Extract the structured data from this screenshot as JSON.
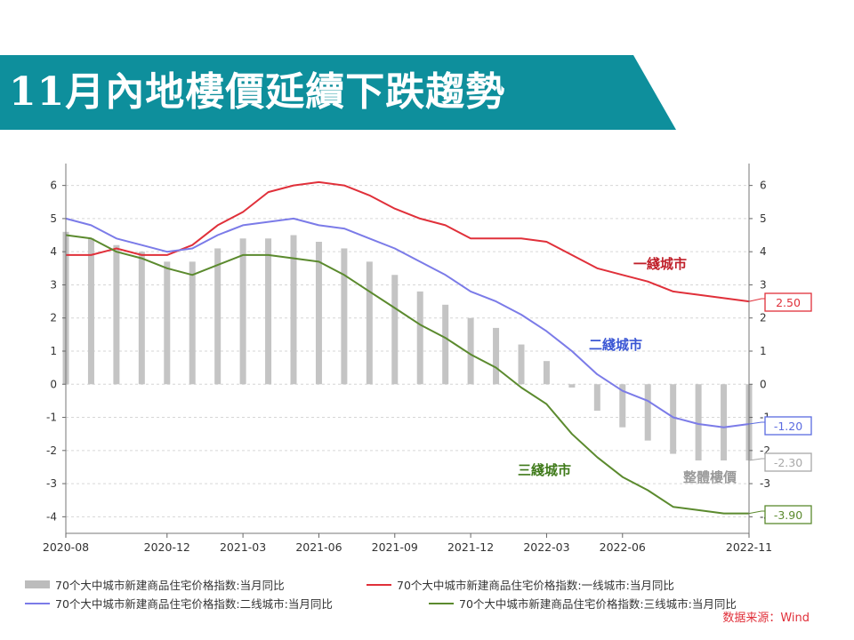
{
  "title": "11月內地樓價延續下跌趨勢",
  "chart_data": {
    "type": "bar+line",
    "x": [
      "2020-08",
      "2020-09",
      "2020-10",
      "2020-11",
      "2020-12",
      "2021-01",
      "2021-02",
      "2021-03",
      "2021-04",
      "2021-05",
      "2021-06",
      "2021-07",
      "2021-08",
      "2021-09",
      "2021-10",
      "2021-11",
      "2021-12",
      "2022-01",
      "2022-02",
      "2022-03",
      "2022-04",
      "2022-05",
      "2022-06",
      "2022-07",
      "2022-08",
      "2022-09",
      "2022-10",
      "2022-11"
    ],
    "xticks": [
      "2020-08",
      "2020-12",
      "2021-03",
      "2021-06",
      "2021-09",
      "2021-12",
      "2022-03",
      "2022-06",
      "2022-11"
    ],
    "ylim": [
      -4.5,
      6.5
    ],
    "yticks": [
      -4,
      -3,
      -2,
      -1,
      0,
      1,
      2,
      3,
      4,
      5,
      6
    ],
    "grid": true,
    "series": [
      {
        "name": "70个大中城市新建商品住宅价格指数:当月同比",
        "type": "bar",
        "color": "#c4c4c4",
        "values": [
          4.6,
          4.4,
          4.2,
          4.0,
          3.7,
          3.7,
          4.1,
          4.4,
          4.4,
          4.5,
          4.3,
          4.1,
          3.7,
          3.3,
          2.8,
          2.4,
          2.0,
          1.7,
          1.2,
          0.7,
          -0.1,
          -0.8,
          -1.3,
          -1.7,
          -2.1,
          -2.3,
          -2.3,
          -2.3
        ]
      },
      {
        "name": "70个大中城市新建商品住宅价格指数:一线城市:当月同比",
        "type": "line",
        "color": "#e0303a",
        "values": [
          3.9,
          3.9,
          4.1,
          3.9,
          3.9,
          4.2,
          4.8,
          5.2,
          5.8,
          6.0,
          6.1,
          6.0,
          5.7,
          5.3,
          5.0,
          4.8,
          4.4,
          4.4,
          4.4,
          4.3,
          3.9,
          3.5,
          3.3,
          3.1,
          2.8,
          2.7,
          2.6,
          2.5
        ]
      },
      {
        "name": "70个大中城市新建商品住宅价格指数:二线城市:当月同比",
        "type": "line",
        "color": "#7b7be8",
        "values": [
          5.0,
          4.8,
          4.4,
          4.2,
          4.0,
          4.1,
          4.5,
          4.8,
          4.9,
          5.0,
          4.8,
          4.7,
          4.4,
          4.1,
          3.7,
          3.3,
          2.8,
          2.5,
          2.1,
          1.6,
          1.0,
          0.3,
          -0.2,
          -0.5,
          -1.0,
          -1.2,
          -1.3,
          -1.2
        ]
      },
      {
        "name": "70个大中城市新建商品住宅价格指数:三线城市:当月同比",
        "type": "line",
        "color": "#5b8a2e",
        "values": [
          4.5,
          4.4,
          4.0,
          3.8,
          3.5,
          3.3,
          3.6,
          3.9,
          3.9,
          3.8,
          3.7,
          3.3,
          2.8,
          2.3,
          1.8,
          1.4,
          0.9,
          0.5,
          -0.1,
          -0.6,
          -1.5,
          -2.2,
          -2.8,
          -3.2,
          -3.7,
          -3.8,
          -3.9,
          -3.9
        ]
      }
    ],
    "annotations": [
      {
        "text": "一綫城市",
        "color": "#c0202a"
      },
      {
        "text": "二綫城市",
        "color": "#3a56d4"
      },
      {
        "text": "三綫城市",
        "color": "#3f7a1a"
      },
      {
        "text": "整體樓價",
        "color": "#9a9a9a"
      }
    ],
    "end_labels": [
      {
        "text": "2.50",
        "value": 2.5,
        "color": "#e0303a"
      },
      {
        "text": "-1.20",
        "value": -1.2,
        "color": "#5b6be0"
      },
      {
        "text": "-2.30",
        "value": -2.3,
        "color": "#a8a8a8"
      },
      {
        "text": "-3.90",
        "value": -3.9,
        "color": "#5b8a2e"
      }
    ]
  },
  "legend": {
    "bar_label": "70个大中城市新建商品住宅价格指数:当月同比",
    "tier1_label": "70个大中城市新建商品住宅价格指数:一线城市:当月同比",
    "tier2_label": "70个大中城市新建商品住宅价格指数:二线城市:当月同比",
    "tier3_label": "70个大中城市新建商品住宅价格指数:三线城市:当月同比"
  },
  "source": "数据来源：Wind",
  "colors": {
    "banner": "#0e8f9c",
    "banner_dark": "#0a6f7a"
  }
}
